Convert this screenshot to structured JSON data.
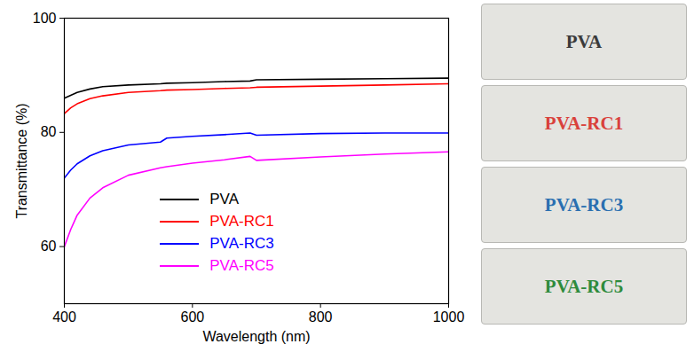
{
  "chart_data": {
    "type": "line",
    "x_label": "Wavelength (nm)",
    "y_label": "Transmittance (%)",
    "x": [
      400,
      410,
      420,
      440,
      460,
      500,
      550,
      560,
      600,
      650,
      690,
      700,
      800,
      900,
      1000
    ],
    "series": [
      {
        "name": "PVA",
        "color": "#000000",
        "values": [
          86,
          86.5,
          87,
          87.6,
          88,
          88.3,
          88.5,
          88.6,
          88.7,
          88.9,
          89.0,
          89.2,
          89.3,
          89.4,
          89.5
        ]
      },
      {
        "name": "PVA-RC1",
        "color": "#ff0000",
        "values": [
          83.3,
          84.3,
          85,
          85.9,
          86.4,
          87,
          87.3,
          87.4,
          87.5,
          87.7,
          87.8,
          87.9,
          88.1,
          88.3,
          88.5
        ]
      },
      {
        "name": "PVA-RC3",
        "color": "#0000ff",
        "values": [
          72,
          73.4,
          74.5,
          75.9,
          76.8,
          77.8,
          78.3,
          79.0,
          79.3,
          79.6,
          79.9,
          79.5,
          79.8,
          79.9,
          79.9
        ]
      },
      {
        "name": "PVA-RC5",
        "color": "#ff00ff",
        "values": [
          60,
          63,
          65.5,
          68.5,
          70.3,
          72.5,
          73.8,
          74.0,
          74.6,
          75.2,
          75.8,
          75.1,
          75.7,
          76.2,
          76.6
        ]
      }
    ],
    "xlim": [
      400,
      1000
    ],
    "xticks": [
      400,
      600,
      800,
      1000
    ],
    "ylim": [
      50,
      100
    ],
    "yticks": [
      60,
      80,
      100
    ],
    "grid": false,
    "legend": "bottom"
  },
  "photo": {
    "samples": [
      {
        "label": "PVA",
        "color": "#3a3a3a"
      },
      {
        "label": "PVA-RC1",
        "color": "#d9413b"
      },
      {
        "label": "PVA-RC3",
        "color": "#2a6fb0"
      },
      {
        "label": "PVA-RC5",
        "color": "#2e8b3c"
      }
    ]
  }
}
